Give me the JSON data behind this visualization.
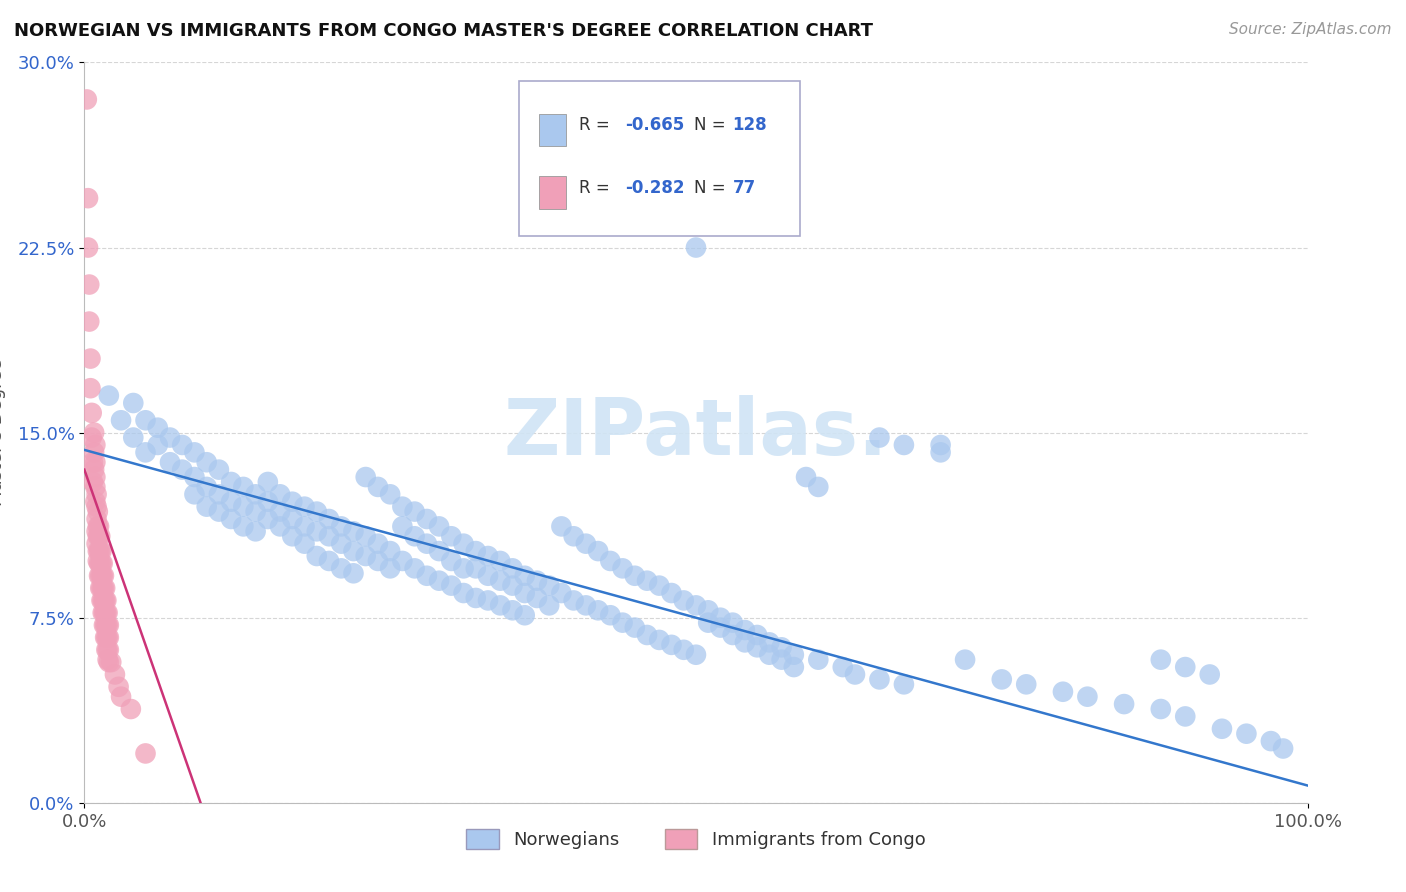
{
  "title": "NORWEGIAN VS IMMIGRANTS FROM CONGO MASTER'S DEGREE CORRELATION CHART",
  "source": "Source: ZipAtlas.com",
  "ylabel": "Master's Degree",
  "xlim": [
    0,
    1.0
  ],
  "ylim": [
    0,
    0.3
  ],
  "ytick_vals": [
    0.0,
    0.075,
    0.15,
    0.225,
    0.3
  ],
  "ytick_labels": [
    "0.0%",
    "7.5%",
    "15.0%",
    "22.5%",
    "30.0%"
  ],
  "xtick_vals": [
    0.0,
    1.0
  ],
  "xtick_labels": [
    "0.0%",
    "100.0%"
  ],
  "legend_r_blue": "-0.665",
  "legend_n_blue": "128",
  "legend_r_pink": "-0.282",
  "legend_n_pink": "77",
  "blue_color": "#aac8ee",
  "pink_color": "#f0a0b8",
  "line_blue": "#3377cc",
  "line_pink": "#cc3377",
  "watermark_color": "#d0e4f5",
  "background_color": "#ffffff",
  "grid_color": "#cccccc",
  "title_color": "#111111",
  "source_color": "#999999",
  "legend_text_color": "#3366cc",
  "blue_line_x": [
    0.0,
    1.0
  ],
  "blue_line_y": [
    0.143,
    0.007
  ],
  "pink_line_x": [
    0.0,
    0.095
  ],
  "pink_line_y": [
    0.135,
    0.0
  ],
  "blue_scatter": [
    [
      0.02,
      0.165
    ],
    [
      0.03,
      0.155
    ],
    [
      0.04,
      0.162
    ],
    [
      0.04,
      0.148
    ],
    [
      0.05,
      0.155
    ],
    [
      0.05,
      0.142
    ],
    [
      0.06,
      0.152
    ],
    [
      0.06,
      0.145
    ],
    [
      0.07,
      0.148
    ],
    [
      0.07,
      0.138
    ],
    [
      0.08,
      0.145
    ],
    [
      0.08,
      0.135
    ],
    [
      0.09,
      0.142
    ],
    [
      0.09,
      0.132
    ],
    [
      0.09,
      0.125
    ],
    [
      0.1,
      0.138
    ],
    [
      0.1,
      0.128
    ],
    [
      0.1,
      0.12
    ],
    [
      0.11,
      0.135
    ],
    [
      0.11,
      0.125
    ],
    [
      0.11,
      0.118
    ],
    [
      0.12,
      0.13
    ],
    [
      0.12,
      0.122
    ],
    [
      0.12,
      0.115
    ],
    [
      0.13,
      0.128
    ],
    [
      0.13,
      0.12
    ],
    [
      0.13,
      0.112
    ],
    [
      0.14,
      0.125
    ],
    [
      0.14,
      0.118
    ],
    [
      0.14,
      0.11
    ],
    [
      0.15,
      0.13
    ],
    [
      0.15,
      0.122
    ],
    [
      0.15,
      0.115
    ],
    [
      0.16,
      0.125
    ],
    [
      0.16,
      0.118
    ],
    [
      0.16,
      0.112
    ],
    [
      0.17,
      0.122
    ],
    [
      0.17,
      0.115
    ],
    [
      0.17,
      0.108
    ],
    [
      0.18,
      0.12
    ],
    [
      0.18,
      0.112
    ],
    [
      0.18,
      0.105
    ],
    [
      0.19,
      0.118
    ],
    [
      0.19,
      0.11
    ],
    [
      0.19,
      0.1
    ],
    [
      0.2,
      0.115
    ],
    [
      0.2,
      0.108
    ],
    [
      0.2,
      0.098
    ],
    [
      0.21,
      0.112
    ],
    [
      0.21,
      0.105
    ],
    [
      0.21,
      0.095
    ],
    [
      0.22,
      0.11
    ],
    [
      0.22,
      0.102
    ],
    [
      0.22,
      0.093
    ],
    [
      0.23,
      0.132
    ],
    [
      0.23,
      0.108
    ],
    [
      0.23,
      0.1
    ],
    [
      0.24,
      0.128
    ],
    [
      0.24,
      0.105
    ],
    [
      0.24,
      0.098
    ],
    [
      0.25,
      0.125
    ],
    [
      0.25,
      0.102
    ],
    [
      0.25,
      0.095
    ],
    [
      0.26,
      0.12
    ],
    [
      0.26,
      0.112
    ],
    [
      0.26,
      0.098
    ],
    [
      0.27,
      0.118
    ],
    [
      0.27,
      0.108
    ],
    [
      0.27,
      0.095
    ],
    [
      0.28,
      0.115
    ],
    [
      0.28,
      0.105
    ],
    [
      0.28,
      0.092
    ],
    [
      0.29,
      0.112
    ],
    [
      0.29,
      0.102
    ],
    [
      0.29,
      0.09
    ],
    [
      0.3,
      0.108
    ],
    [
      0.3,
      0.098
    ],
    [
      0.3,
      0.088
    ],
    [
      0.31,
      0.105
    ],
    [
      0.31,
      0.095
    ],
    [
      0.31,
      0.085
    ],
    [
      0.32,
      0.102
    ],
    [
      0.32,
      0.095
    ],
    [
      0.32,
      0.083
    ],
    [
      0.33,
      0.1
    ],
    [
      0.33,
      0.092
    ],
    [
      0.33,
      0.082
    ],
    [
      0.34,
      0.098
    ],
    [
      0.34,
      0.09
    ],
    [
      0.34,
      0.08
    ],
    [
      0.35,
      0.095
    ],
    [
      0.35,
      0.088
    ],
    [
      0.35,
      0.078
    ],
    [
      0.36,
      0.092
    ],
    [
      0.36,
      0.085
    ],
    [
      0.36,
      0.076
    ],
    [
      0.37,
      0.09
    ],
    [
      0.37,
      0.083
    ],
    [
      0.38,
      0.088
    ],
    [
      0.38,
      0.08
    ],
    [
      0.39,
      0.112
    ],
    [
      0.39,
      0.085
    ],
    [
      0.4,
      0.108
    ],
    [
      0.4,
      0.082
    ],
    [
      0.41,
      0.105
    ],
    [
      0.41,
      0.08
    ],
    [
      0.42,
      0.102
    ],
    [
      0.42,
      0.078
    ],
    [
      0.43,
      0.098
    ],
    [
      0.43,
      0.076
    ],
    [
      0.44,
      0.095
    ],
    [
      0.44,
      0.073
    ],
    [
      0.45,
      0.092
    ],
    [
      0.45,
      0.071
    ],
    [
      0.46,
      0.09
    ],
    [
      0.46,
      0.068
    ],
    [
      0.47,
      0.088
    ],
    [
      0.47,
      0.066
    ],
    [
      0.48,
      0.085
    ],
    [
      0.48,
      0.064
    ],
    [
      0.49,
      0.082
    ],
    [
      0.49,
      0.062
    ],
    [
      0.5,
      0.08
    ],
    [
      0.5,
      0.06
    ],
    [
      0.51,
      0.078
    ],
    [
      0.51,
      0.073
    ],
    [
      0.52,
      0.075
    ],
    [
      0.52,
      0.071
    ],
    [
      0.53,
      0.073
    ],
    [
      0.53,
      0.068
    ],
    [
      0.54,
      0.07
    ],
    [
      0.54,
      0.065
    ],
    [
      0.55,
      0.068
    ],
    [
      0.55,
      0.063
    ],
    [
      0.5,
      0.225
    ],
    [
      0.56,
      0.065
    ],
    [
      0.56,
      0.06
    ],
    [
      0.57,
      0.063
    ],
    [
      0.57,
      0.058
    ],
    [
      0.58,
      0.06
    ],
    [
      0.58,
      0.055
    ],
    [
      0.59,
      0.132
    ],
    [
      0.6,
      0.128
    ],
    [
      0.6,
      0.058
    ],
    [
      0.62,
      0.055
    ],
    [
      0.63,
      0.052
    ],
    [
      0.65,
      0.148
    ],
    [
      0.65,
      0.05
    ],
    [
      0.67,
      0.145
    ],
    [
      0.67,
      0.048
    ],
    [
      0.7,
      0.142
    ],
    [
      0.7,
      0.145
    ],
    [
      0.72,
      0.058
    ],
    [
      0.75,
      0.05
    ],
    [
      0.77,
      0.048
    ],
    [
      0.8,
      0.045
    ],
    [
      0.82,
      0.043
    ],
    [
      0.85,
      0.04
    ],
    [
      0.88,
      0.038
    ],
    [
      0.9,
      0.035
    ],
    [
      0.88,
      0.058
    ],
    [
      0.9,
      0.055
    ],
    [
      0.92,
      0.052
    ],
    [
      0.93,
      0.03
    ],
    [
      0.95,
      0.028
    ],
    [
      0.97,
      0.025
    ],
    [
      0.98,
      0.022
    ]
  ],
  "pink_scatter": [
    [
      0.002,
      0.285
    ],
    [
      0.003,
      0.245
    ],
    [
      0.003,
      0.225
    ],
    [
      0.004,
      0.21
    ],
    [
      0.004,
      0.195
    ],
    [
      0.005,
      0.18
    ],
    [
      0.005,
      0.168
    ],
    [
      0.006,
      0.158
    ],
    [
      0.006,
      0.148
    ],
    [
      0.007,
      0.138
    ],
    [
      0.007,
      0.13
    ],
    [
      0.008,
      0.15
    ],
    [
      0.008,
      0.142
    ],
    [
      0.008,
      0.135
    ],
    [
      0.009,
      0.145
    ],
    [
      0.009,
      0.138
    ],
    [
      0.009,
      0.132
    ],
    [
      0.009,
      0.128
    ],
    [
      0.009,
      0.122
    ],
    [
      0.01,
      0.125
    ],
    [
      0.01,
      0.12
    ],
    [
      0.01,
      0.115
    ],
    [
      0.01,
      0.11
    ],
    [
      0.01,
      0.105
    ],
    [
      0.011,
      0.118
    ],
    [
      0.011,
      0.112
    ],
    [
      0.011,
      0.108
    ],
    [
      0.011,
      0.102
    ],
    [
      0.011,
      0.098
    ],
    [
      0.012,
      0.112
    ],
    [
      0.012,
      0.108
    ],
    [
      0.012,
      0.102
    ],
    [
      0.012,
      0.097
    ],
    [
      0.012,
      0.092
    ],
    [
      0.013,
      0.108
    ],
    [
      0.013,
      0.102
    ],
    [
      0.013,
      0.097
    ],
    [
      0.013,
      0.092
    ],
    [
      0.013,
      0.087
    ],
    [
      0.014,
      0.102
    ],
    [
      0.014,
      0.097
    ],
    [
      0.014,
      0.092
    ],
    [
      0.014,
      0.087
    ],
    [
      0.014,
      0.082
    ],
    [
      0.015,
      0.097
    ],
    [
      0.015,
      0.092
    ],
    [
      0.015,
      0.087
    ],
    [
      0.015,
      0.082
    ],
    [
      0.015,
      0.077
    ],
    [
      0.016,
      0.092
    ],
    [
      0.016,
      0.087
    ],
    [
      0.016,
      0.082
    ],
    [
      0.016,
      0.077
    ],
    [
      0.016,
      0.072
    ],
    [
      0.017,
      0.087
    ],
    [
      0.017,
      0.082
    ],
    [
      0.017,
      0.077
    ],
    [
      0.017,
      0.072
    ],
    [
      0.017,
      0.067
    ],
    [
      0.018,
      0.082
    ],
    [
      0.018,
      0.077
    ],
    [
      0.018,
      0.072
    ],
    [
      0.018,
      0.067
    ],
    [
      0.018,
      0.062
    ],
    [
      0.019,
      0.077
    ],
    [
      0.019,
      0.072
    ],
    [
      0.019,
      0.067
    ],
    [
      0.019,
      0.062
    ],
    [
      0.019,
      0.058
    ],
    [
      0.02,
      0.072
    ],
    [
      0.02,
      0.067
    ],
    [
      0.02,
      0.062
    ],
    [
      0.02,
      0.057
    ],
    [
      0.022,
      0.057
    ],
    [
      0.025,
      0.052
    ],
    [
      0.028,
      0.047
    ],
    [
      0.03,
      0.043
    ],
    [
      0.038,
      0.038
    ],
    [
      0.05,
      0.02
    ]
  ]
}
